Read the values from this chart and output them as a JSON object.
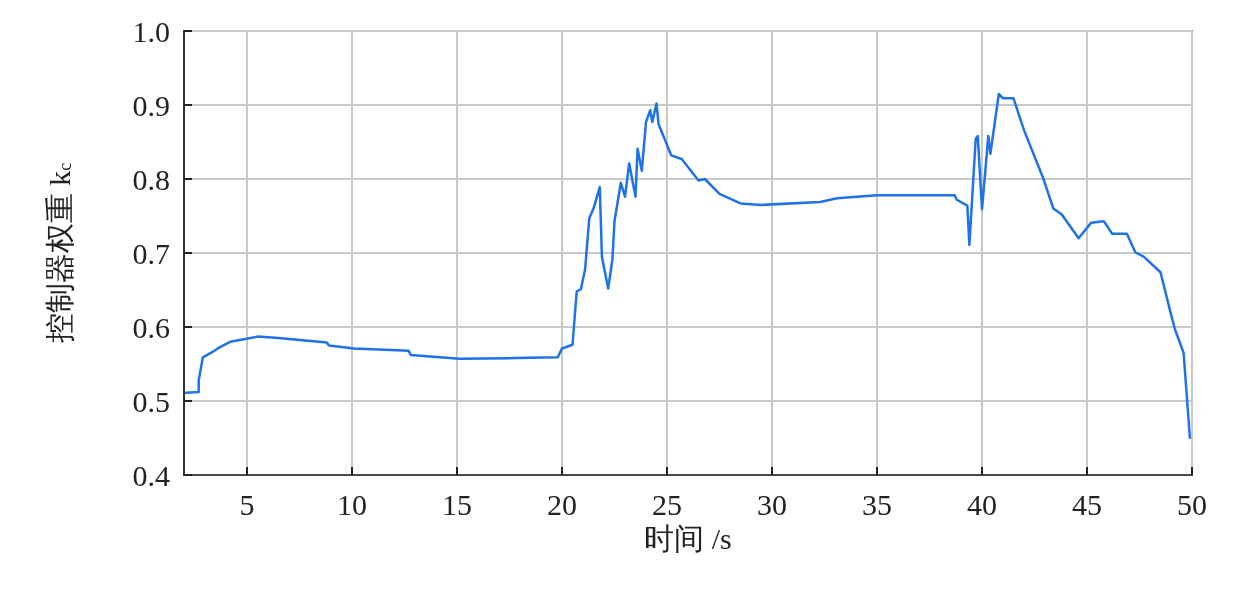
{
  "chart_data": {
    "type": "line",
    "xlabel": "时间 /s",
    "ylabel": "控制器权重 k$_{c}$",
    "xlim": [
      2,
      50
    ],
    "xticks": [
      5,
      10,
      15,
      20,
      25,
      30,
      35,
      40,
      45,
      50
    ],
    "ylim": [
      0.4,
      1.0
    ],
    "yticks": [
      0.4,
      0.5,
      0.6,
      0.7,
      0.8,
      0.9,
      {
        "value": 1,
        "label": "1.0"
      }
    ],
    "grid": true,
    "marker": "none",
    "line_style": "solid",
    "series": [
      {
        "color": "#1f72e8",
        "x": [
          2.1,
          2.7,
          2.7,
          2.9,
          3.4,
          3.6,
          4.2,
          5.5,
          6.5,
          8.8,
          8.9,
          10.1,
          12.7,
          12.8,
          15.1,
          17.8,
          19.8,
          20.0,
          20.5,
          20.7,
          20.9,
          21.1,
          21.3,
          21.5,
          21.8,
          21.9,
          22.2,
          22.4,
          22.5,
          22.8,
          23.0,
          23.2,
          23.5,
          23.6,
          23.8,
          24.0,
          24.2,
          24.3,
          24.5,
          24.6,
          25.2,
          25.7,
          26.5,
          26.8,
          27.5,
          28.5,
          29.5,
          32.3,
          33.1,
          35.0,
          38.7,
          38.8,
          39.3,
          39.4,
          39.7,
          39.8,
          40.0,
          40.3,
          40.4,
          40.8,
          41.0,
          41.5,
          42.0,
          42.9,
          43.4,
          43.8,
          44.6,
          45.2,
          45.8,
          46.2,
          46.9,
          47.3,
          47.7,
          48.5,
          49.0,
          49.2,
          49.6,
          49.9
        ],
        "values": [
          0.511,
          0.512,
          0.528,
          0.559,
          0.567,
          0.571,
          0.58,
          0.587,
          0.585,
          0.579,
          0.575,
          0.571,
          0.568,
          0.562,
          0.557,
          0.558,
          0.559,
          0.571,
          0.576,
          0.648,
          0.651,
          0.678,
          0.747,
          0.76,
          0.789,
          0.695,
          0.652,
          0.691,
          0.743,
          0.795,
          0.776,
          0.821,
          0.776,
          0.841,
          0.811,
          0.877,
          0.893,
          0.877,
          0.902,
          0.874,
          0.832,
          0.827,
          0.798,
          0.8,
          0.78,
          0.767,
          0.765,
          0.769,
          0.774,
          0.778,
          0.778,
          0.772,
          0.764,
          0.711,
          0.854,
          0.858,
          0.759,
          0.858,
          0.834,
          0.915,
          0.909,
          0.909,
          0.866,
          0.802,
          0.76,
          0.752,
          0.72,
          0.741,
          0.743,
          0.726,
          0.726,
          0.701,
          0.695,
          0.674,
          0.617,
          0.596,
          0.565,
          0.45
        ]
      }
    ]
  }
}
